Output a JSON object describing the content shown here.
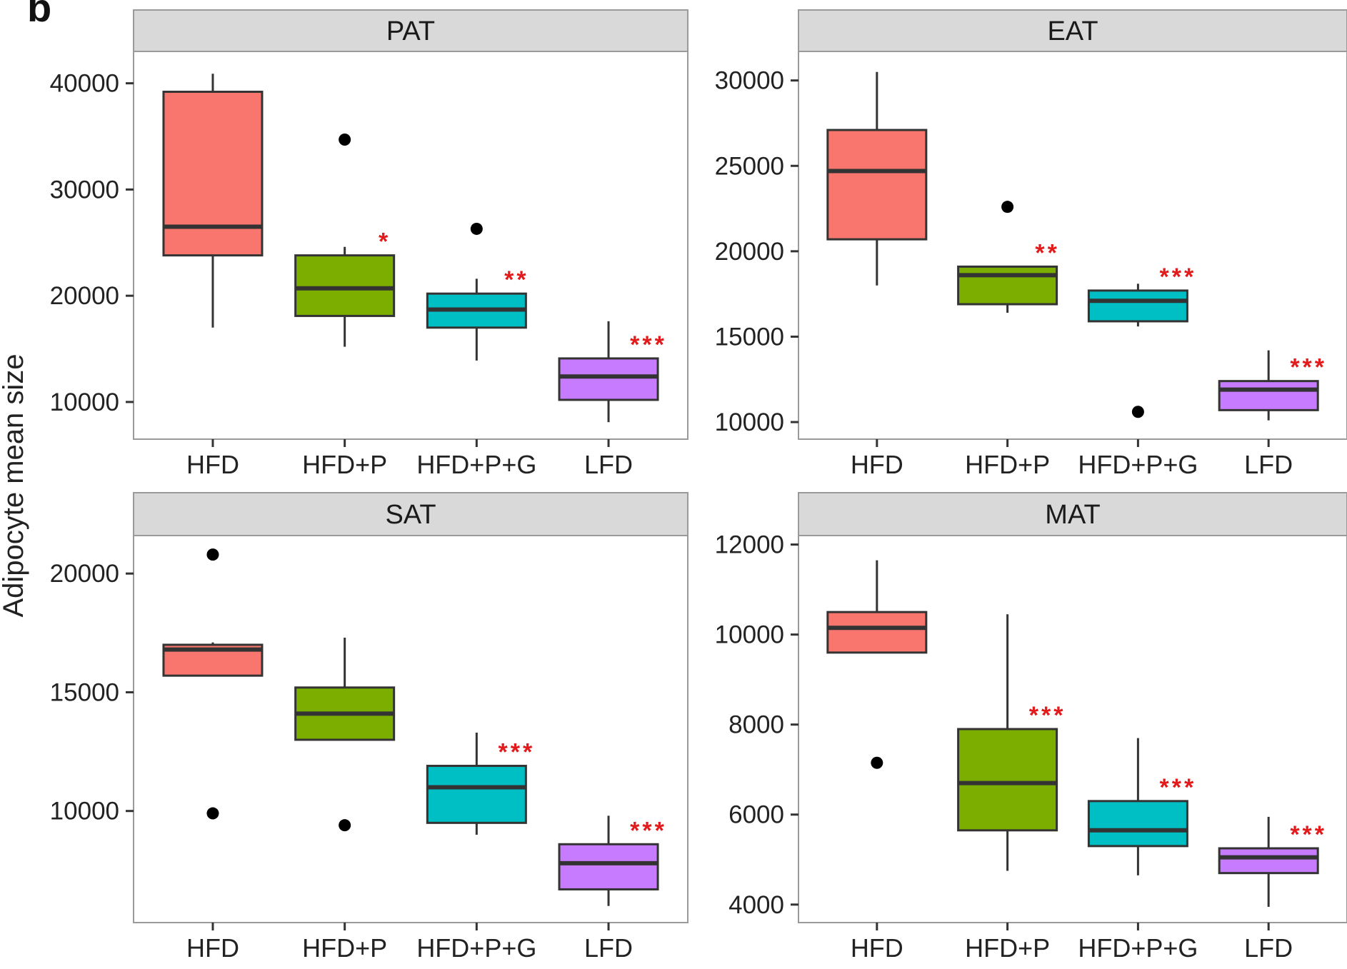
{
  "figure": {
    "panel_letter": "b",
    "ylabel": "Adipocyte mean size",
    "sig_color": "#e31a1c",
    "strip_fill": "#d9d9d9",
    "category_colors": {
      "HFD": "#f8766d",
      "HFD+P": "#7cae00",
      "HFD+P+G": "#00bfc4",
      "LFD": "#c77cff"
    }
  },
  "chart_data": [
    {
      "type": "box",
      "panel": "PAT",
      "categories": [
        "HFD",
        "HFD+P",
        "HFD+P+G",
        "LFD"
      ],
      "ylim": [
        6500,
        43000
      ],
      "yticks": [
        10000,
        20000,
        30000,
        40000
      ],
      "ytick_labels": [
        "10000",
        "20000",
        "30000",
        "40000"
      ],
      "boxes": [
        {
          "category": "HFD",
          "min": 17000,
          "q1": 23800,
          "median": 26500,
          "q3": 39200,
          "max": 40900,
          "outliers": [],
          "sig": ""
        },
        {
          "category": "HFD+P",
          "min": 15200,
          "q1": 18100,
          "median": 20700,
          "q3": 23800,
          "max": 24600,
          "outliers": [
            34700
          ],
          "sig": "*"
        },
        {
          "category": "HFD+P+G",
          "min": 13900,
          "q1": 17000,
          "median": 18700,
          "q3": 20200,
          "max": 21600,
          "outliers": [
            26300
          ],
          "sig": "**"
        },
        {
          "category": "LFD",
          "min": 8100,
          "q1": 10200,
          "median": 12400,
          "q3": 14100,
          "max": 17600,
          "outliers": [],
          "sig": "***"
        }
      ]
    },
    {
      "type": "box",
      "panel": "EAT",
      "categories": [
        "HFD",
        "HFD+P",
        "HFD+P+G",
        "LFD"
      ],
      "ylim": [
        9000,
        31700
      ],
      "yticks": [
        10000,
        15000,
        20000,
        25000,
        30000
      ],
      "ytick_labels": [
        "10000",
        "15000",
        "20000",
        "25000",
        "30000"
      ],
      "boxes": [
        {
          "category": "HFD",
          "min": 18000,
          "q1": 20700,
          "median": 24700,
          "q3": 27100,
          "max": 30500,
          "outliers": [],
          "sig": ""
        },
        {
          "category": "HFD+P",
          "min": 16400,
          "q1": 16900,
          "median": 18600,
          "q3": 19100,
          "max": 19100,
          "outliers": [
            22600
          ],
          "sig": "**"
        },
        {
          "category": "HFD+P+G",
          "min": 15600,
          "q1": 15900,
          "median": 17100,
          "q3": 17700,
          "max": 18100,
          "outliers": [
            10600
          ],
          "sig": "***"
        },
        {
          "category": "LFD",
          "min": 10100,
          "q1": 10700,
          "median": 11900,
          "q3": 12400,
          "max": 14200,
          "outliers": [],
          "sig": "***"
        }
      ]
    },
    {
      "type": "box",
      "panel": "SAT",
      "categories": [
        "HFD",
        "HFD+P",
        "HFD+P+G",
        "LFD"
      ],
      "ylim": [
        5300,
        21600
      ],
      "yticks": [
        10000,
        15000,
        20000
      ],
      "ytick_labels": [
        "10000",
        "15000",
        "20000"
      ],
      "boxes": [
        {
          "category": "HFD",
          "min": 15700,
          "q1": 15700,
          "median": 16800,
          "q3": 17000,
          "max": 17100,
          "outliers": [
            20800,
            9900
          ],
          "sig": ""
        },
        {
          "category": "HFD+P",
          "min": 13000,
          "q1": 13000,
          "median": 14100,
          "q3": 15200,
          "max": 17300,
          "outliers": [
            9400
          ],
          "sig": ""
        },
        {
          "category": "HFD+P+G",
          "min": 9000,
          "q1": 9500,
          "median": 11000,
          "q3": 11900,
          "max": 13300,
          "outliers": [],
          "sig": "***"
        },
        {
          "category": "LFD",
          "min": 6000,
          "q1": 6700,
          "median": 7800,
          "q3": 8600,
          "max": 9800,
          "outliers": [],
          "sig": "***"
        }
      ]
    },
    {
      "type": "box",
      "panel": "MAT",
      "categories": [
        "HFD",
        "HFD+P",
        "HFD+P+G",
        "LFD"
      ],
      "ylim": [
        3600,
        12200
      ],
      "yticks": [
        4000,
        6000,
        8000,
        10000,
        12000
      ],
      "ytick_labels": [
        "4000",
        "6000",
        "8000",
        "10000",
        "12000"
      ],
      "boxes": [
        {
          "category": "HFD",
          "min": 9600,
          "q1": 9600,
          "median": 10150,
          "q3": 10500,
          "max": 11650,
          "outliers": [
            7150
          ],
          "sig": ""
        },
        {
          "category": "HFD+P",
          "min": 4750,
          "q1": 5650,
          "median": 6700,
          "q3": 7900,
          "max": 10450,
          "outliers": [],
          "sig": "***"
        },
        {
          "category": "HFD+P+G",
          "min": 4650,
          "q1": 5300,
          "median": 5650,
          "q3": 6300,
          "max": 7700,
          "outliers": [],
          "sig": "***"
        },
        {
          "category": "LFD",
          "min": 3950,
          "q1": 4700,
          "median": 5050,
          "q3": 5250,
          "max": 5950,
          "outliers": [],
          "sig": "***"
        }
      ]
    }
  ]
}
